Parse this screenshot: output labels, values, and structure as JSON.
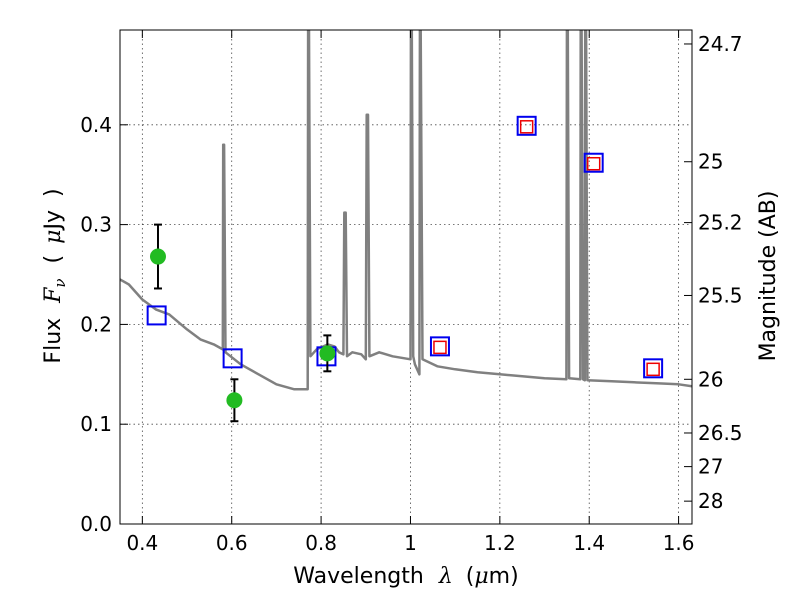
{
  "chart_data": {
    "type": "scatter",
    "xlabel_prefix": "Wavelength",
    "xlabel_symbol": "λ",
    "xlabel_unit_open": "(",
    "xlabel_unit_mu": "μ",
    "xlabel_unit_rest": "m)",
    "ylabel_prefix": "Flux",
    "ylabel_symbol": "F",
    "ylabel_subscript": "ν",
    "ylabel_unit_open": "(",
    "ylabel_unit_mu": "μ",
    "ylabel_unit_rest": "Jy",
    "ylabel_unit_close": ")",
    "y2label": "Magnitude (AB)",
    "xlim": [
      0.35,
      1.63
    ],
    "ylim": [
      0.0,
      0.495
    ],
    "grid": true,
    "x_ticks": [
      0.4,
      0.6,
      0.8,
      1.0,
      1.2,
      1.4,
      1.6
    ],
    "x_tick_labels": [
      "0.4",
      "0.6",
      "0.8",
      "1",
      "1.2",
      "1.4",
      "1.6"
    ],
    "y_ticks": [
      0.0,
      0.1,
      0.2,
      0.3,
      0.4
    ],
    "y_tick_labels": [
      "0.0",
      "0.1",
      "0.2",
      "0.3",
      "0.4"
    ],
    "y2_ticks": [
      {
        "label": "24.7",
        "flux": 0.481
      },
      {
        "label": "25",
        "flux": 0.363
      },
      {
        "label": "25.2",
        "flux": 0.302
      },
      {
        "label": "25.5",
        "flux": 0.229
      },
      {
        "label": "26",
        "flux": 0.145
      },
      {
        "label": "26.5",
        "flux": 0.0912
      },
      {
        "label": "27",
        "flux": 0.0575
      },
      {
        "label": "28",
        "flux": 0.0229
      }
    ],
    "observed_points": {
      "color": "#22bb22",
      "x": [
        0.435,
        0.606,
        0.814
      ],
      "y": [
        0.268,
        0.124,
        0.171
      ],
      "yerr": [
        0.032,
        0.021,
        0.018
      ]
    },
    "model_points_blue": {
      "color": "#0000ee",
      "x": [
        0.432,
        0.602,
        0.812,
        1.066,
        1.26,
        1.41,
        1.543
      ],
      "y": [
        0.209,
        0.166,
        0.168,
        0.178,
        0.399,
        0.362,
        0.156
      ]
    },
    "model_points_red": {
      "color": "#ee0000",
      "x": [
        1.066,
        1.26,
        1.41,
        1.543
      ],
      "y": [
        0.177,
        0.398,
        0.361,
        0.155
      ]
    },
    "template_spectrum": {
      "color": "#808080",
      "x": [
        0.35,
        0.37,
        0.4,
        0.43,
        0.46,
        0.5,
        0.53,
        0.56,
        0.58,
        0.581,
        0.583,
        0.586,
        0.62,
        0.66,
        0.7,
        0.74,
        0.77,
        0.771,
        0.773,
        0.776,
        0.79,
        0.815,
        0.83,
        0.84,
        0.85,
        0.852,
        0.855,
        0.858,
        0.87,
        0.89,
        0.9,
        0.902,
        0.905,
        0.908,
        0.93,
        0.96,
        1.0,
        1.001,
        1.003,
        1.006,
        1.01,
        1.02,
        1.021,
        1.023,
        1.027,
        1.06,
        1.1,
        1.15,
        1.2,
        1.25,
        1.3,
        1.349,
        1.35,
        1.352,
        1.355,
        1.38,
        1.381,
        1.383,
        1.386,
        1.39,
        1.391,
        1.393,
        1.396,
        1.45,
        1.5,
        1.55,
        1.6,
        1.63
      ],
      "y": [
        0.245,
        0.24,
        0.225,
        0.215,
        0.21,
        0.195,
        0.185,
        0.18,
        0.175,
        0.38,
        0.38,
        0.172,
        0.16,
        0.15,
        0.14,
        0.135,
        0.135,
        0.495,
        0.495,
        0.168,
        0.175,
        0.18,
        0.178,
        0.172,
        0.17,
        0.312,
        0.312,
        0.168,
        0.172,
        0.17,
        0.165,
        0.41,
        0.41,
        0.168,
        0.172,
        0.168,
        0.165,
        0.495,
        0.495,
        0.168,
        0.16,
        0.15,
        0.495,
        0.495,
        0.165,
        0.158,
        0.155,
        0.152,
        0.15,
        0.148,
        0.146,
        0.145,
        0.495,
        0.495,
        0.146,
        0.145,
        0.495,
        0.495,
        0.145,
        0.144,
        0.495,
        0.495,
        0.144,
        0.143,
        0.142,
        0.141,
        0.14,
        0.138
      ]
    }
  }
}
